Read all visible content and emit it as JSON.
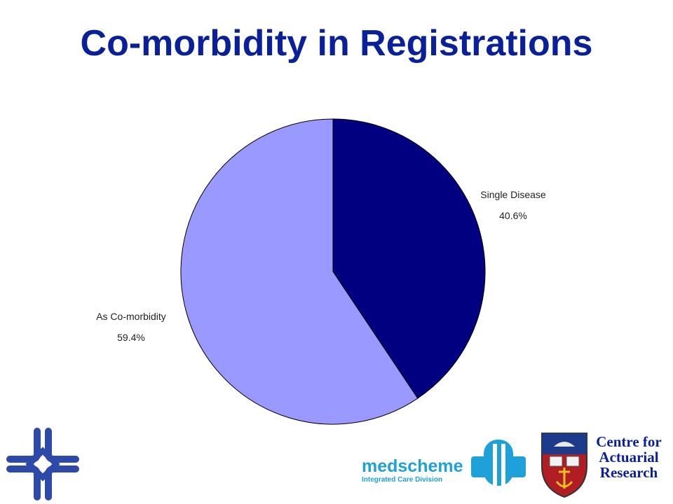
{
  "slide": {
    "title": "Co-morbidity in Registrations"
  },
  "chart_data": {
    "type": "pie",
    "title": "",
    "slices": [
      {
        "label": "Single Disease",
        "value": 40.6,
        "value_label": "40.6%",
        "color": "#000080"
      },
      {
        "label": "As Co-morbidity",
        "value": 59.4,
        "value_label": "59.4%",
        "color": "#9999ff"
      }
    ],
    "start_angle_deg": 0,
    "direction": "clockwise",
    "legend": "none"
  },
  "logos": {
    "medscheme_name": "medscheme",
    "medscheme_division": "Integrated Care Division",
    "car_line1": "Centre for",
    "car_line2": "Actuarial",
    "car_line3": "Research",
    "colors": {
      "brand_blue": "#0a1f9a",
      "medscheme_cyan": "#1ea0d8",
      "shield_red": "#b01e23"
    }
  }
}
